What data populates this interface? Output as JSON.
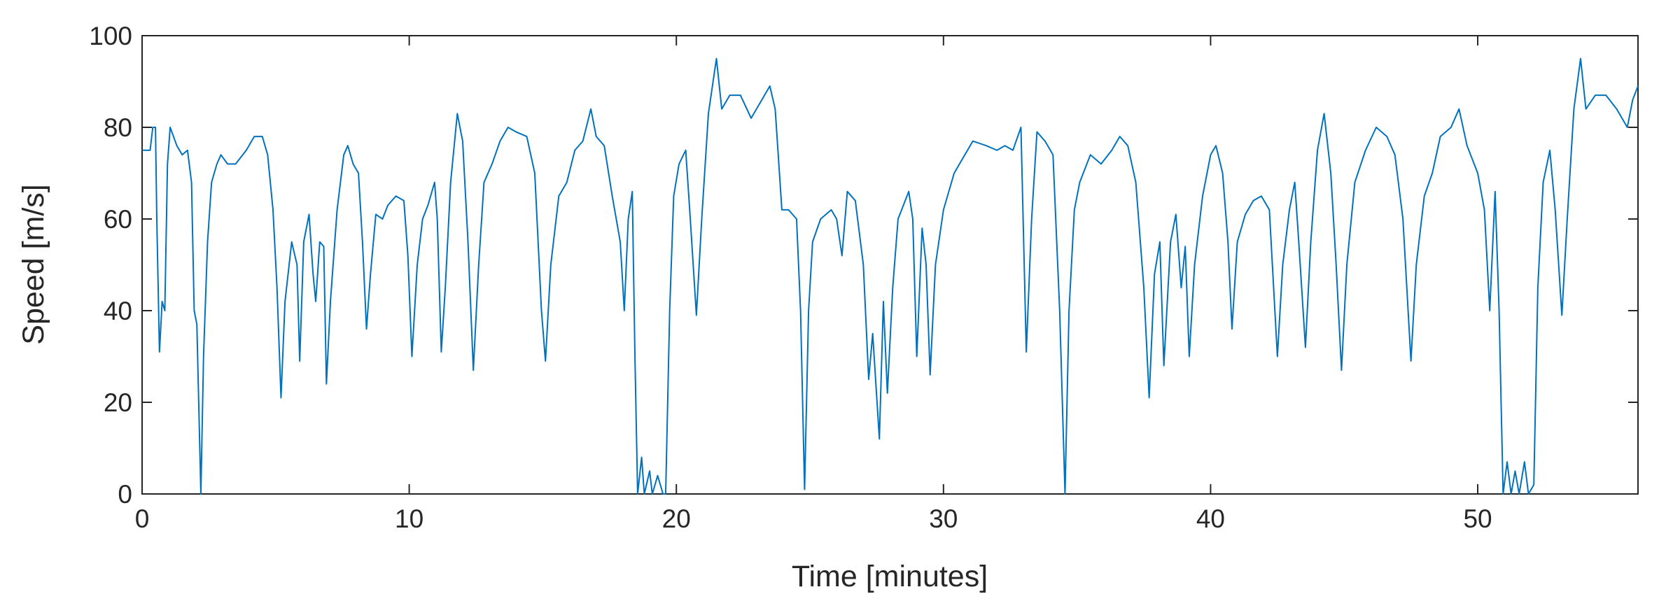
{
  "chart_data": {
    "type": "line",
    "xlabel": "Time [minutes]",
    "ylabel": "Speed [m/s]",
    "xlim": [
      0,
      56
    ],
    "xticks": [
      0,
      10,
      20,
      30,
      40,
      50
    ],
    "ylim": [
      0,
      100
    ],
    "yticks": [
      0,
      20,
      40,
      60,
      80,
      100
    ],
    "color": "#0072bd",
    "x": [
      0,
      0.3,
      0.4,
      0.5,
      0.55,
      0.65,
      0.75,
      0.85,
      0.95,
      1.05,
      1.3,
      1.5,
      1.7,
      1.85,
      1.95,
      2.05,
      2.2,
      2.3,
      2.45,
      2.6,
      2.8,
      2.95,
      3.2,
      3.5,
      3.9,
      4.2,
      4.5,
      4.7,
      4.9,
      5.05,
      5.2,
      5.35,
      5.6,
      5.8,
      5.9,
      6.05,
      6.25,
      6.4,
      6.5,
      6.65,
      6.8,
      6.9,
      7.05,
      7.3,
      7.55,
      7.7,
      7.9,
      8.1,
      8.25,
      8.4,
      8.55,
      8.75,
      9.0,
      9.2,
      9.5,
      9.8,
      9.95,
      10.1,
      10.3,
      10.5,
      10.7,
      10.95,
      11.05,
      11.2,
      11.35,
      11.55,
      11.8,
      12.0,
      12.2,
      12.4,
      12.6,
      12.8,
      13.1,
      13.4,
      13.7,
      14.0,
      14.4,
      14.7,
      14.95,
      15.1,
      15.3,
      15.6,
      15.9,
      16.2,
      16.5,
      16.8,
      17.0,
      17.3,
      17.6,
      17.9,
      18.05,
      18.2,
      18.35,
      18.45,
      18.55,
      18.7,
      18.8,
      19.0,
      19.1,
      19.3,
      19.5,
      19.6,
      19.75,
      19.9,
      20.1,
      20.35,
      20.5,
      20.75,
      20.95,
      21.2,
      21.5,
      21.7,
      22.0,
      22.4,
      22.8,
      23.1,
      23.5,
      23.7,
      23.95,
      24.2,
      24.5,
      24.65,
      24.8,
      24.95,
      25.1,
      25.4,
      25.8,
      26.0,
      26.2,
      26.4,
      26.7,
      27.0,
      27.2,
      27.35,
      27.6,
      27.75,
      27.9,
      28.1,
      28.3,
      28.7,
      28.85,
      29.0,
      29.2,
      29.35,
      29.5,
      29.7,
      30.0,
      30.4,
      30.8,
      31.1,
      31.6,
      32.0,
      32.3,
      32.6,
      32.9,
      33.1,
      33.3,
      33.5,
      33.8,
      34.1,
      34.35,
      34.55,
      34.7,
      34.9,
      35.1,
      35.5,
      35.9,
      36.3,
      36.6,
      36.9,
      37.2,
      37.5,
      37.7,
      37.9,
      38.1,
      38.25,
      38.5,
      38.7,
      38.9,
      39.05,
      39.2,
      39.4,
      39.7,
      40.0,
      40.2,
      40.45,
      40.65,
      40.8,
      41.0,
      41.3,
      41.6,
      41.9,
      42.2,
      42.5,
      42.7,
      42.95,
      43.15,
      43.3,
      43.55,
      43.75,
      44.0,
      44.25,
      44.5,
      44.7,
      44.9,
      45.1,
      45.4,
      45.8,
      46.2,
      46.6,
      46.9,
      47.2,
      47.5,
      47.7,
      48.0,
      48.3,
      48.6,
      49.0,
      49.3,
      49.6,
      50.0,
      50.25,
      50.45,
      50.65,
      50.8,
      50.95,
      51.1,
      51.25,
      51.4,
      51.55,
      51.75,
      51.9,
      52.1,
      52.25,
      52.45,
      52.7,
      52.9,
      53.15,
      53.35,
      53.6,
      53.85,
      54.05,
      54.4,
      54.8,
      55.2,
      55.6,
      55.8,
      56
    ],
    "values": [
      75,
      75,
      80,
      80,
      60,
      31,
      42,
      40,
      72,
      80,
      76,
      74,
      75,
      68,
      40,
      37,
      0,
      30,
      55,
      68,
      72,
      74,
      72,
      72,
      75,
      78,
      78,
      74,
      62,
      45,
      21,
      42,
      55,
      50,
      29,
      55,
      61,
      48,
      42,
      55,
      54,
      24,
      42,
      62,
      74,
      76,
      72,
      70,
      55,
      36,
      48,
      61,
      60,
      63,
      65,
      64,
      52,
      30,
      50,
      60,
      63,
      68,
      60,
      31,
      45,
      68,
      83,
      77,
      55,
      27,
      50,
      68,
      72,
      77,
      80,
      79,
      78,
      70,
      40,
      29,
      50,
      65,
      68,
      75,
      77,
      84,
      78,
      76,
      65,
      55,
      40,
      60,
      66,
      30,
      0,
      8,
      0,
      5,
      0,
      4,
      0,
      0,
      40,
      65,
      72,
      75,
      62,
      39,
      60,
      83,
      95,
      84,
      87,
      87,
      82,
      85,
      89,
      84,
      62,
      62,
      60,
      40,
      1,
      40,
      55,
      60,
      62,
      60,
      52,
      66,
      64,
      50,
      25,
      35,
      12,
      42,
      22,
      45,
      60,
      66,
      60,
      30,
      58,
      50,
      26,
      50,
      62,
      70,
      74,
      77,
      76,
      75,
      76,
      75,
      80,
      31,
      60,
      79,
      77,
      74,
      40,
      0,
      40,
      62,
      68,
      74,
      72,
      75,
      78,
      76,
      68,
      45,
      21,
      48,
      55,
      28,
      55,
      61,
      45,
      54,
      30,
      50,
      65,
      74,
      76,
      70,
      55,
      36,
      55,
      61,
      64,
      65,
      62,
      30,
      50,
      62,
      68,
      55,
      32,
      55,
      75,
      83,
      70,
      50,
      27,
      50,
      68,
      75,
      80,
      78,
      74,
      60,
      29,
      50,
      65,
      70,
      78,
      80,
      84,
      76,
      70,
      62,
      40,
      66,
      40,
      0,
      7,
      0,
      5,
      0,
      7,
      0,
      2,
      45,
      68,
      75,
      62,
      39,
      60,
      84,
      95,
      84,
      87,
      87,
      84,
      80,
      86,
      89
    ]
  }
}
